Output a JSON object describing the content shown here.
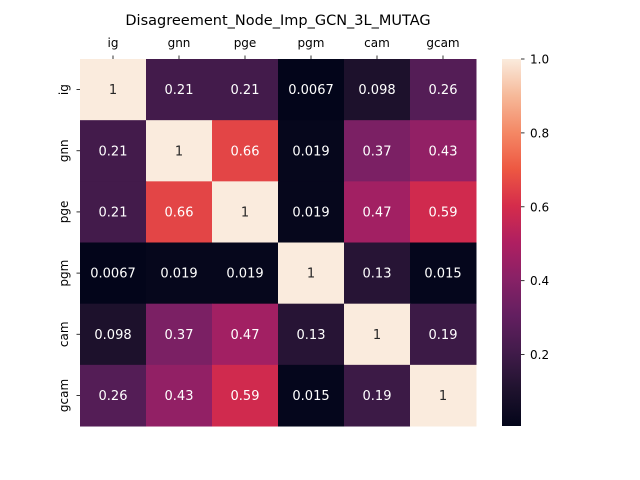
{
  "chart_data": {
    "type": "heatmap",
    "title": "Disagreement_Node_Imp_GCN_3L_MUTAG",
    "x_categories": [
      "ig",
      "gnn",
      "pge",
      "pgm",
      "cam",
      "gcam"
    ],
    "y_categories": [
      "ig",
      "gnn",
      "pge",
      "pgm",
      "cam",
      "gcam"
    ],
    "values": [
      [
        1,
        0.21,
        0.21,
        0.0067,
        0.098,
        0.26
      ],
      [
        0.21,
        1,
        0.66,
        0.019,
        0.37,
        0.43
      ],
      [
        0.21,
        0.66,
        1,
        0.019,
        0.47,
        0.59
      ],
      [
        0.0067,
        0.019,
        0.019,
        1,
        0.13,
        0.015
      ],
      [
        0.098,
        0.37,
        0.47,
        0.13,
        1,
        0.19
      ],
      [
        0.26,
        0.43,
        0.59,
        0.015,
        0.19,
        1
      ]
    ],
    "cell_labels": [
      [
        "1",
        "0.21",
        "0.21",
        "0.0067",
        "0.098",
        "0.26"
      ],
      [
        "0.21",
        "1",
        "0.66",
        "0.019",
        "0.37",
        "0.43"
      ],
      [
        "0.21",
        "0.66",
        "1",
        "0.019",
        "0.47",
        "0.59"
      ],
      [
        "0.0067",
        "0.019",
        "0.019",
        "1",
        "0.13",
        "0.015"
      ],
      [
        "0.098",
        "0.37",
        "0.47",
        "0.13",
        "1",
        "0.19"
      ],
      [
        "0.26",
        "0.43",
        "0.59",
        "0.015",
        "0.19",
        "1"
      ]
    ],
    "colorbar": {
      "range": [
        0.0067,
        1.0
      ],
      "ticks": [
        0.2,
        0.4,
        0.6,
        0.8,
        1.0
      ],
      "tick_labels": [
        "0.2",
        "0.4",
        "0.6",
        "0.8",
        "1.0"
      ]
    },
    "colormap": "rocket",
    "x_tick_position": "top",
    "grid": false,
    "xlabel": "",
    "ylabel": ""
  }
}
